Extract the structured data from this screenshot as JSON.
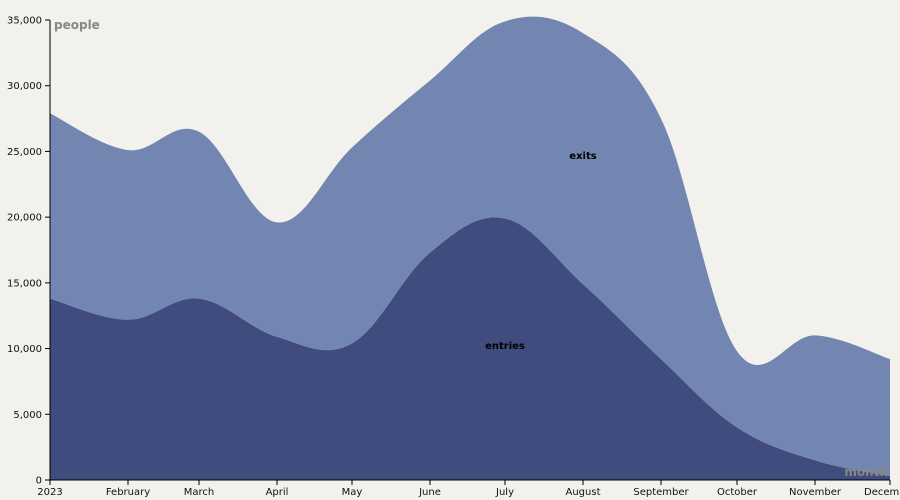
{
  "chart_data": {
    "type": "area",
    "stacked": true,
    "title": "",
    "ylabel": "people",
    "xlabel": "month",
    "ylim": [
      0,
      35000
    ],
    "yticks": [
      0,
      5000,
      10000,
      15000,
      20000,
      25000,
      30000,
      35000
    ],
    "ytick_labels": [
      "0",
      "5,000",
      "10,000",
      "15,000",
      "20,000",
      "25,000",
      "30,000",
      "35,000"
    ],
    "x": [
      "2023-01",
      "2023-02",
      "2023-03",
      "2023-04",
      "2023-05",
      "2023-06",
      "2023-07",
      "2023-08",
      "2023-09",
      "2023-10",
      "2023-11",
      "2023-12"
    ],
    "xtick_labels": [
      "2023",
      "February",
      "March",
      "April",
      "May",
      "June",
      "July",
      "August",
      "September",
      "October",
      "November",
      "December"
    ],
    "grid": false,
    "series": [
      {
        "name": "entries",
        "color": "#404c7e",
        "values": [
          13800,
          12200,
          13800,
          10900,
          10400,
          17300,
          19900,
          14900,
          9200,
          4000,
          1500,
          300
        ]
      },
      {
        "name": "exits",
        "color": "#7386b1",
        "values": [
          14100,
          12900,
          12700,
          8700,
          14900,
          13100,
          15000,
          19100,
          18300,
          5800,
          9500,
          8900
        ]
      }
    ]
  }
}
